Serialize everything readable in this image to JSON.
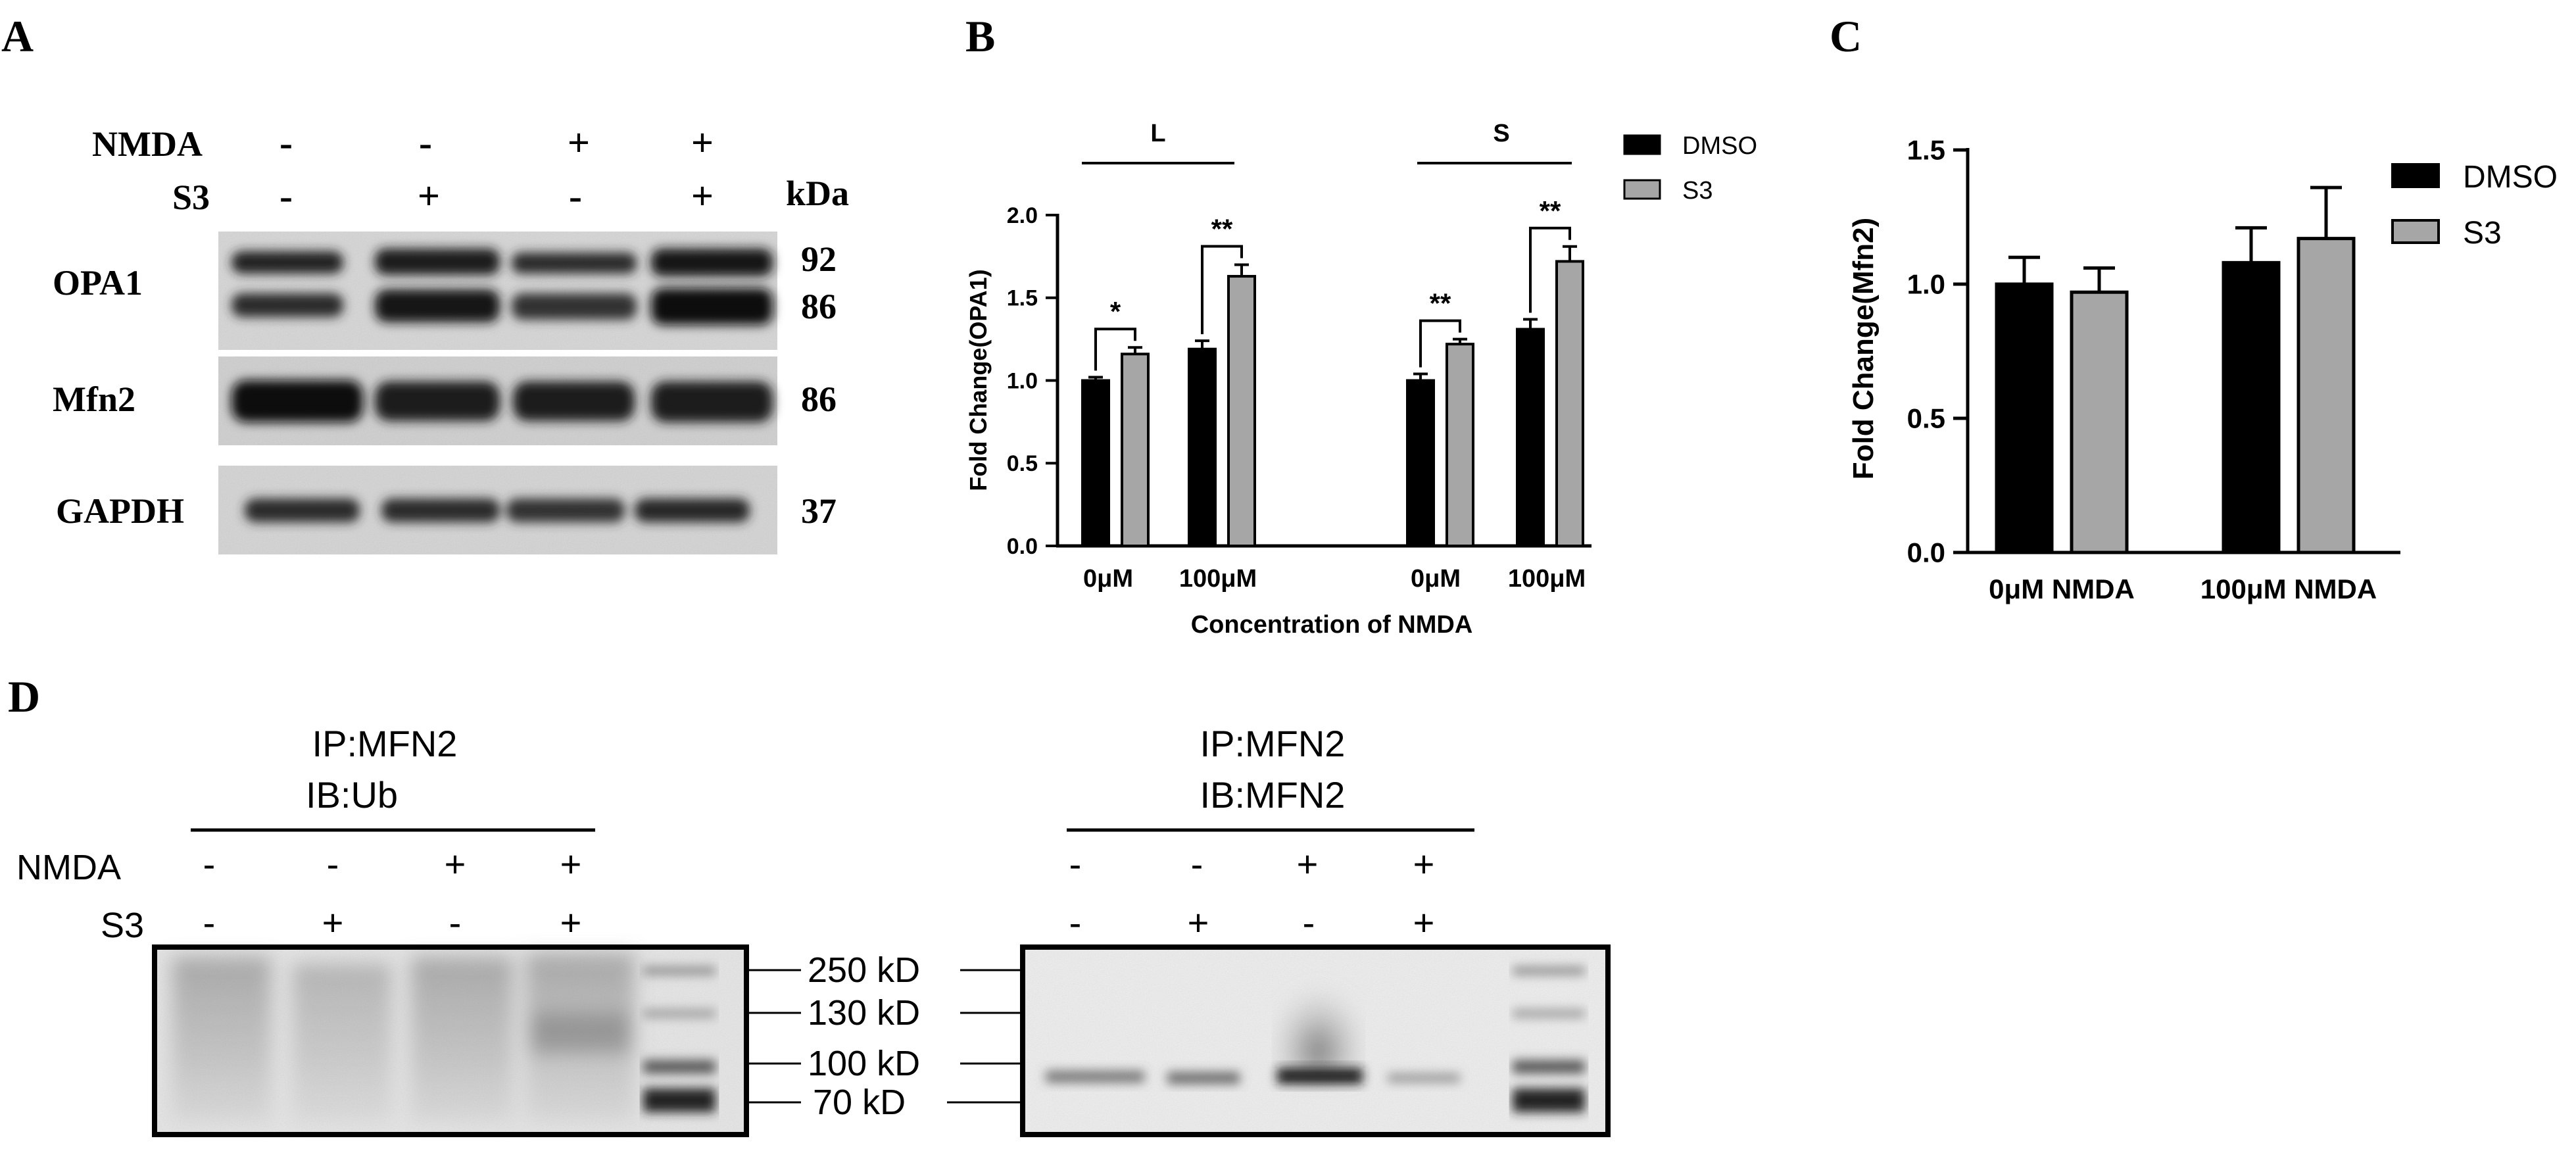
{
  "panels": {
    "A": "A",
    "B": "B",
    "C": "C",
    "D": "D"
  },
  "panel_a": {
    "row_labels": [
      "NMDA",
      "S3"
    ],
    "nmda_signs": [
      "-",
      "-",
      "+",
      "+"
    ],
    "s3_signs": [
      "-",
      "+",
      "-",
      "+"
    ],
    "kda_label": "kDa",
    "blots": [
      {
        "name": "OPA1",
        "kda": [
          "92",
          "86"
        ]
      },
      {
        "name": "Mfn2",
        "kda": [
          "86"
        ]
      },
      {
        "name": "GAPDH",
        "kda": [
          "37"
        ]
      }
    ]
  },
  "chart_data": [
    {
      "type": "bar",
      "panel": "B",
      "ylabel": "Fold Change(OPA1)",
      "xlabel": "Concentration of NMDA",
      "ylim": [
        0,
        2.0
      ],
      "yticks": [
        "0.0",
        "0.5",
        "1.0",
        "1.5",
        "2.0"
      ],
      "groups": [
        "L",
        "S"
      ],
      "categories": [
        "0μM",
        "100μM",
        "0μM",
        "100μM"
      ],
      "series": [
        {
          "name": "DMSO",
          "color": "#000000",
          "values": [
            1.0,
            1.19,
            1.0,
            1.31
          ],
          "errors": [
            0.02,
            0.05,
            0.04,
            0.06
          ]
        },
        {
          "name": "S3",
          "color": "#a6a6a6",
          "values": [
            1.16,
            1.63,
            1.22,
            1.72
          ],
          "errors": [
            0.04,
            0.07,
            0.03,
            0.09
          ]
        }
      ],
      "significance": [
        "*",
        "**",
        "**",
        "**"
      ],
      "legend_position": "top-right"
    },
    {
      "type": "bar",
      "panel": "C",
      "ylabel": "Fold Change(Mfn2)",
      "xlabel": "",
      "ylim": [
        0,
        1.5
      ],
      "yticks": [
        "0.0",
        "0.5",
        "1.0",
        "1.5"
      ],
      "categories": [
        "0μM NMDA",
        "100μM NMDA"
      ],
      "series": [
        {
          "name": "DMSO",
          "color": "#000000",
          "values": [
            1.0,
            1.08
          ],
          "errors": [
            0.1,
            0.13
          ]
        },
        {
          "name": "S3",
          "color": "#a6a6a6",
          "values": [
            0.97,
            1.17
          ],
          "errors": [
            0.09,
            0.19
          ]
        }
      ],
      "legend_position": "top-right"
    }
  ],
  "panel_d": {
    "left_title": [
      "IP:MFN2",
      "IB:Ub"
    ],
    "right_title": [
      "IP:MFN2",
      "IB:MFN2"
    ],
    "row_labels": [
      "NMDA",
      "S3"
    ],
    "nmda_signs": [
      "-",
      "-",
      "+",
      "+"
    ],
    "s3_signs": [
      "-",
      "+",
      "-",
      "+"
    ],
    "markers": [
      "250 kD",
      "130 kD",
      "100 kD",
      "70 kD"
    ]
  }
}
